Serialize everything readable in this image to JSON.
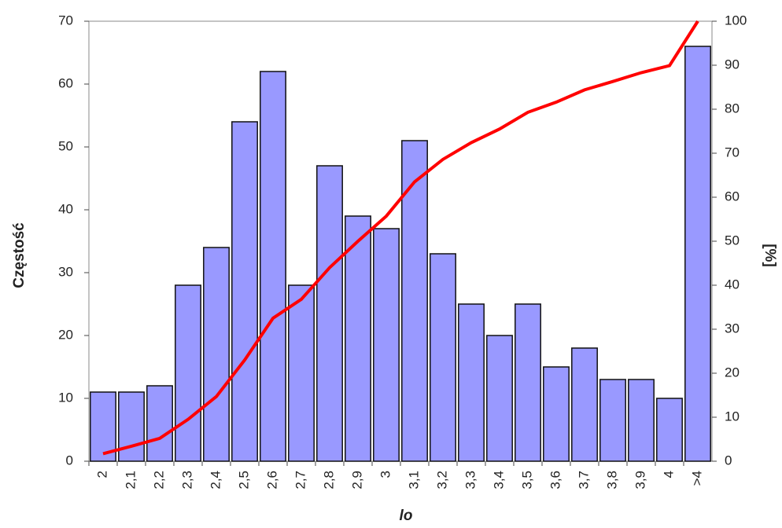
{
  "chart_data": {
    "type": "bar",
    "x_label": "lo",
    "y_label": "Częstość",
    "y2_label": "[%]",
    "categories": [
      "2",
      "2,1",
      "2,2",
      "2,3",
      "2,4",
      "2,5",
      "2,6",
      "2,7",
      "2,8",
      "2,9",
      "3",
      "3,1",
      "3,2",
      "3,3",
      "3,4",
      "3,5",
      "3,6",
      "3,7",
      "3,8",
      "3,9",
      "4",
      ">4"
    ],
    "series": [
      {
        "type": "bar",
        "color": "#9999ff",
        "values": [
          11,
          11,
          12,
          28,
          34,
          54,
          62,
          28,
          47,
          39,
          37,
          51,
          33,
          25,
          20,
          25,
          15,
          18,
          13,
          13,
          10,
          66
        ]
      },
      {
        "type": "line",
        "axis": "y2",
        "color": "#ff0000",
        "values": [
          1.7,
          3.4,
          5.2,
          9.5,
          14.7,
          23.0,
          32.5,
          36.8,
          44.0,
          50.0,
          55.7,
          63.5,
          68.6,
          72.4,
          75.5,
          79.3,
          81.6,
          84.4,
          86.3,
          88.3,
          89.9,
          100
        ]
      }
    ],
    "ylim": [
      0,
      70
    ],
    "yticks": [
      0,
      10,
      20,
      30,
      40,
      50,
      60,
      70
    ],
    "y2lim": [
      0,
      100
    ],
    "y2ticks": [
      0,
      10,
      20,
      30,
      40,
      50,
      60,
      70,
      80,
      90,
      100
    ]
  }
}
